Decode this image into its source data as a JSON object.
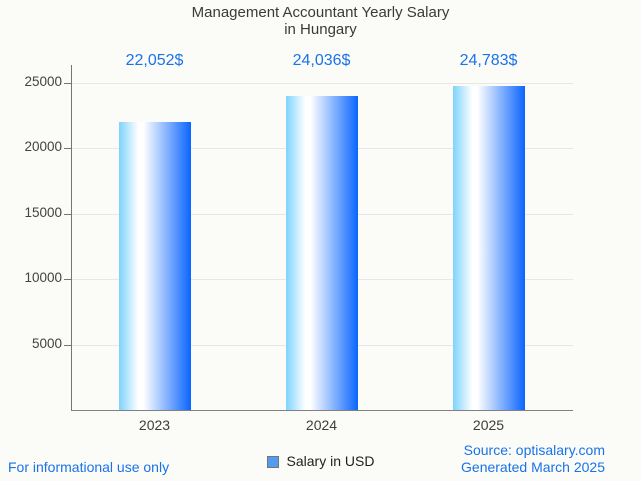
{
  "title": {
    "line1": "Management Accountant Yearly Salary",
    "line2": "in Hungary"
  },
  "legend": {
    "label": "Salary in USD",
    "marker_color": "#569bf2",
    "marker_border": "#757575"
  },
  "footer": {
    "left": "For informational use only",
    "source": "Source: optisalary.com",
    "generated": "Generated March 2025"
  },
  "colors": {
    "accent_blue": "#1a73e8",
    "title_text": "#3a3a3a",
    "tick_text": "#424242",
    "gridline": "#e7e7e7",
    "axis": "#757575",
    "bar_gradient_left": "#7ed3fd",
    "bar_gradient_mid": "#ffffff",
    "bar_gradient_right": "#0a65fe",
    "background": "#fbfbf8"
  },
  "chart_data": {
    "type": "bar",
    "title": "Management Accountant Yearly Salary in Hungary",
    "categories": [
      "2023",
      "2024",
      "2025"
    ],
    "series": [
      {
        "name": "Salary in USD",
        "values": [
          22052,
          24036,
          24783
        ]
      }
    ],
    "value_labels": [
      "22,052$",
      "24,036$",
      "24,783$"
    ],
    "xlabel": "",
    "ylabel": "",
    "yticks": [
      5000,
      10000,
      15000,
      20000,
      25000
    ],
    "ylim": [
      0,
      26400
    ],
    "grid": true,
    "legend_position": "bottom"
  }
}
